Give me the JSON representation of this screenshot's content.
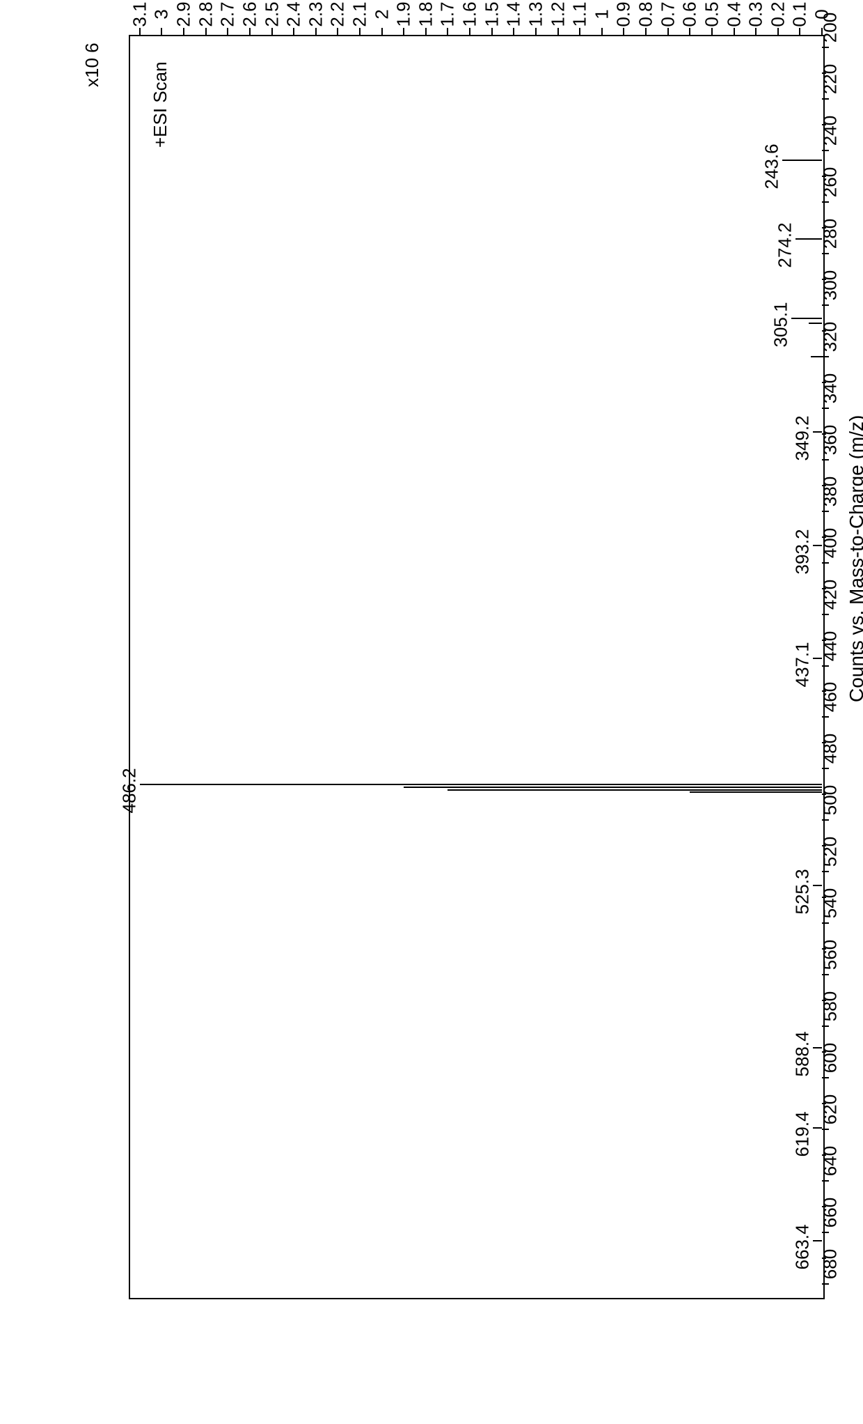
{
  "chart": {
    "type": "mass-spectrum",
    "scan_title": "+ESI Scan",
    "y_multiplier_label": "x10 6",
    "x_axis_title": "Counts vs. Mass-to-Charge (m/z)",
    "background_color": "#ffffff",
    "border_color": "#000000",
    "tick_color": "#000000",
    "line_color": "#000000",
    "text_color": "#000000",
    "font_size_ticks": 26,
    "font_size_title": 28,
    "xlim": [
      195,
      685
    ],
    "ylim": [
      0,
      3.15
    ],
    "x_ticks_major_step": 20,
    "x_ticks_major": [
      200,
      220,
      240,
      260,
      280,
      300,
      320,
      340,
      360,
      380,
      400,
      420,
      440,
      460,
      480,
      500,
      520,
      540,
      560,
      580,
      600,
      620,
      640,
      660,
      680
    ],
    "y_ticks": [
      0,
      0.1,
      0.2,
      0.3,
      0.4,
      0.5,
      0.6,
      0.7,
      0.8,
      0.9,
      1,
      1.1,
      1.2,
      1.3,
      1.4,
      1.5,
      1.6,
      1.7,
      1.8,
      1.9,
      2,
      2.1,
      2.2,
      2.3,
      2.4,
      2.5,
      2.6,
      2.7,
      2.8,
      2.9,
      3,
      3.1
    ],
    "peaks": [
      {
        "mz": 243.6,
        "intensity": 0.18,
        "label": "243.6"
      },
      {
        "mz": 274.2,
        "intensity": 0.12,
        "label": "274.2"
      },
      {
        "mz": 305.1,
        "intensity": 0.14,
        "label": "305.1"
      },
      {
        "mz": 307.0,
        "intensity": 0.06,
        "label": null
      },
      {
        "mz": 320.0,
        "intensity": 0.05,
        "label": null
      },
      {
        "mz": 349.2,
        "intensity": 0.04,
        "label": "349.2"
      },
      {
        "mz": 393.2,
        "intensity": 0.04,
        "label": "393.2"
      },
      {
        "mz": 437.1,
        "intensity": 0.04,
        "label": "437.1"
      },
      {
        "mz": 486.2,
        "intensity": 3.1,
        "label": "486.2"
      },
      {
        "mz": 487.2,
        "intensity": 1.9,
        "label": null
      },
      {
        "mz": 488.2,
        "intensity": 1.7,
        "label": null
      },
      {
        "mz": 489.2,
        "intensity": 0.6,
        "label": null
      },
      {
        "mz": 525.3,
        "intensity": 0.04,
        "label": "525.3"
      },
      {
        "mz": 588.4,
        "intensity": 0.04,
        "label": "588.4"
      },
      {
        "mz": 619.4,
        "intensity": 0.04,
        "label": "619.4"
      },
      {
        "mz": 663.4,
        "intensity": 0.04,
        "label": "663.4"
      }
    ],
    "peak_line_width": 2
  }
}
